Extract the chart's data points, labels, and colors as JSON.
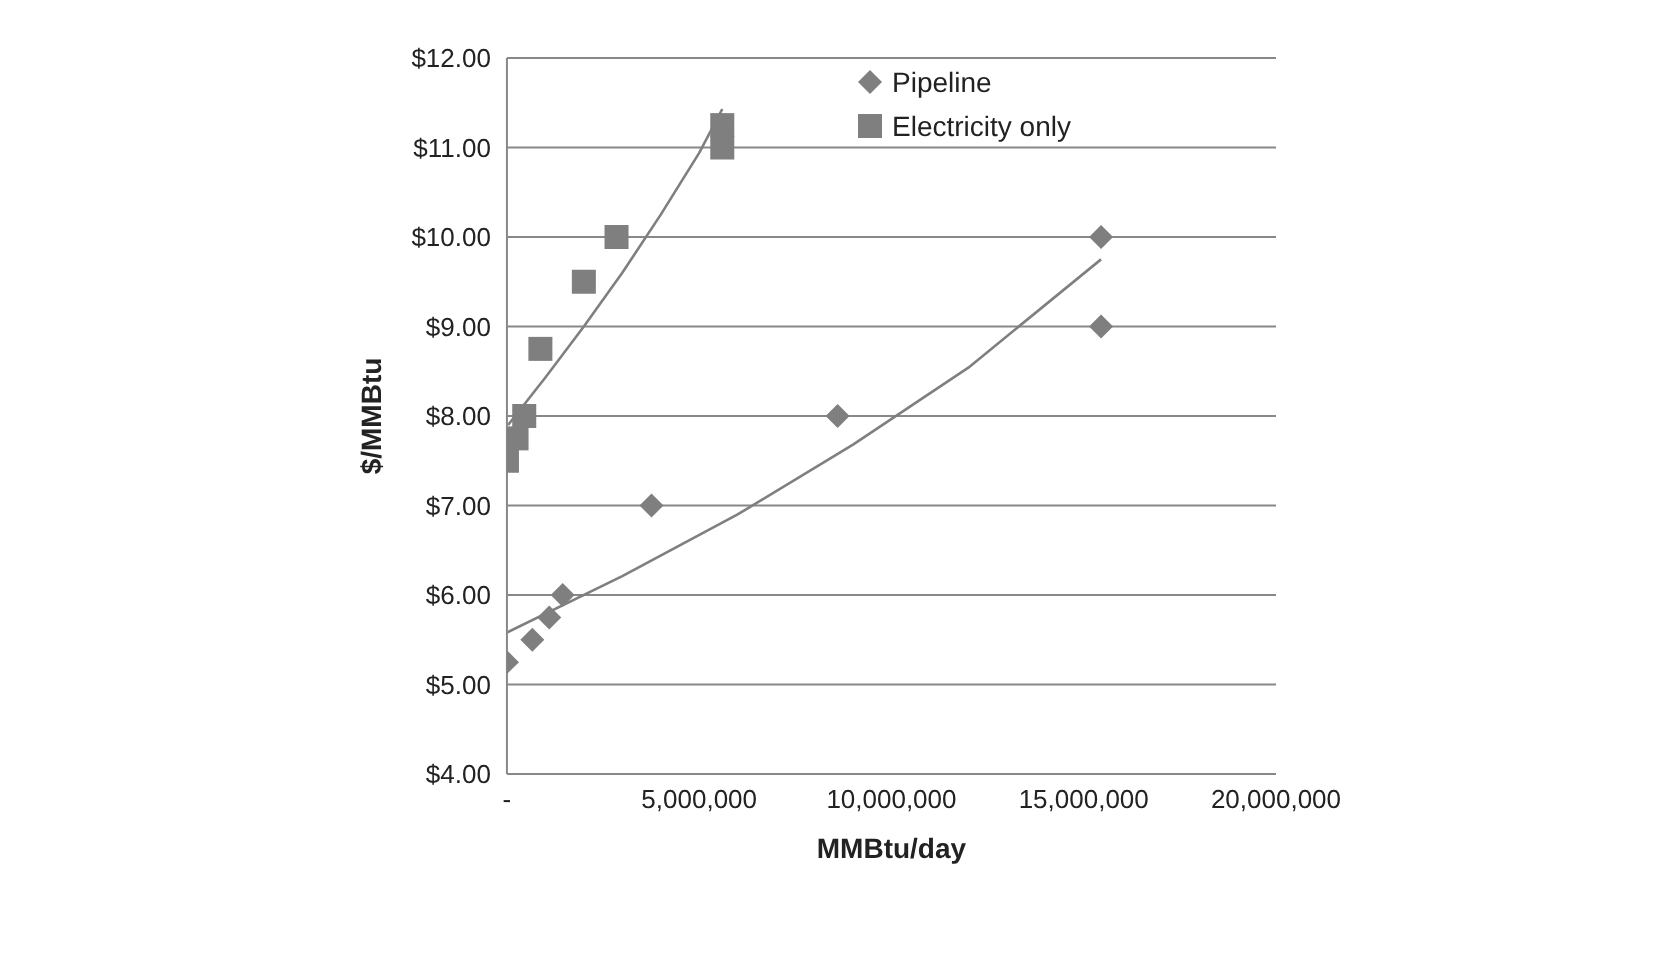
{
  "chart_data": {
    "type": "scatter",
    "xlabel": "MMBtu/day",
    "ylabel": "$/MMBtu",
    "xlim": [
      0,
      20000000
    ],
    "xticks": [
      {
        "value": 0,
        "label": "-"
      },
      {
        "value": 5000000,
        "label": "5,000,000"
      },
      {
        "value": 10000000,
        "label": "10,000,000"
      },
      {
        "value": 15000000,
        "label": "15,000,000"
      },
      {
        "value": 20000000,
        "label": "20,000,000"
      }
    ],
    "ylim": [
      4,
      12
    ],
    "yticks": [
      {
        "value": 4,
        "label": "$4.00"
      },
      {
        "value": 5,
        "label": "$5.00"
      },
      {
        "value": 6,
        "label": "$6.00"
      },
      {
        "value": 7,
        "label": "$7.00"
      },
      {
        "value": 8,
        "label": "$8.00"
      },
      {
        "value": 9,
        "label": "$9.00"
      },
      {
        "value": 10,
        "label": "$10.00"
      },
      {
        "value": 11,
        "label": "$11.00"
      },
      {
        "value": 12,
        "label": "$12.00"
      }
    ],
    "grid": "y",
    "legend": "top right",
    "series": [
      {
        "name": "Pipeline",
        "color": "#7f7f7f",
        "marker": "diamond",
        "x": [
          0,
          660000,
          1100000,
          1450000,
          3760000,
          8600000,
          15450000,
          15450000
        ],
        "values": [
          5.25,
          5.5,
          5.75,
          6.0,
          7.0,
          8.0,
          10.0,
          9.0
        ]
      },
      {
        "name": "Electricity only",
        "color": "#7f7f7f",
        "marker": "square",
        "x": [
          0,
          250000,
          450000,
          870000,
          2000000,
          2850000,
          5600000,
          5600000
        ],
        "values": [
          7.5,
          7.75,
          8.0,
          8.75,
          9.5,
          10.0,
          11.0,
          11.25
        ]
      },
      {
        "type": "line",
        "color": "#7f7f7f",
        "marker": "none",
        "x": [
          0,
          3000000,
          6000000,
          9000000,
          12000000,
          15450000
        ],
        "values": [
          5.58,
          6.21,
          6.9,
          7.68,
          8.54,
          9.75
        ]
      },
      {
        "type": "line",
        "color": "#7f7f7f",
        "marker": "none",
        "x": [
          30000,
          1000000,
          2000000,
          3000000,
          4000000,
          5000000,
          5600000
        ],
        "values": [
          7.9,
          8.43,
          9.0,
          9.6,
          10.25,
          10.94,
          11.43
        ]
      }
    ]
  }
}
